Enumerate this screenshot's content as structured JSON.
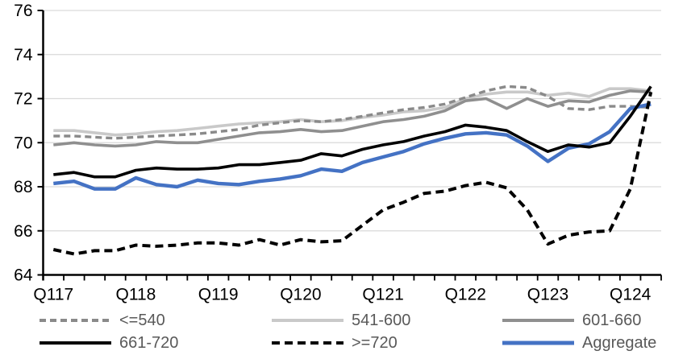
{
  "chart_data": {
    "type": "line",
    "title": "",
    "x_axis": {
      "tick_labels": [
        "Q117",
        "Q118",
        "Q119",
        "Q120",
        "Q121",
        "Q122",
        "Q123",
        "Q124"
      ],
      "label_point_indices": [
        0,
        4,
        8,
        12,
        16,
        20,
        24,
        28
      ],
      "n_points": 30,
      "minor_ticks_every_quarter": true
    },
    "y_axis": {
      "min": 64,
      "max": 76,
      "ticks": [
        64,
        66,
        68,
        70,
        72,
        74,
        76
      ]
    },
    "grid": true,
    "series": [
      {
        "name": "<=540",
        "color": "#8A8A8A",
        "style": "dashed",
        "values": [
          70.3,
          70.3,
          70.25,
          70.2,
          70.25,
          70.3,
          70.35,
          70.4,
          70.5,
          70.6,
          70.8,
          70.9,
          71.0,
          70.95,
          71.05,
          71.2,
          71.35,
          71.5,
          71.6,
          71.75,
          72.05,
          72.35,
          72.55,
          72.5,
          72.1,
          71.55,
          71.5,
          71.65,
          71.65,
          71.6
        ]
      },
      {
        "name": "541-600",
        "color": "#C9C9C9",
        "style": "solid",
        "values": [
          70.55,
          70.55,
          70.45,
          70.35,
          70.4,
          70.5,
          70.55,
          70.65,
          70.75,
          70.85,
          70.9,
          70.95,
          71.05,
          70.95,
          71.0,
          71.15,
          71.25,
          71.4,
          71.45,
          71.6,
          72.0,
          72.2,
          72.3,
          72.3,
          72.15,
          72.25,
          72.1,
          72.45,
          72.45,
          72.35
        ]
      },
      {
        "name": "601-660",
        "color": "#8F8F8F",
        "style": "solid",
        "values": [
          69.9,
          70.0,
          69.9,
          69.85,
          69.9,
          70.05,
          70.0,
          70.0,
          70.15,
          70.3,
          70.45,
          70.5,
          70.6,
          70.5,
          70.55,
          70.75,
          70.95,
          71.05,
          71.2,
          71.45,
          71.9,
          72.0,
          71.55,
          72.0,
          71.65,
          71.9,
          71.85,
          72.15,
          72.35,
          72.3
        ]
      },
      {
        "name": "661-720",
        "color": "#000000",
        "style": "solid",
        "values": [
          68.55,
          68.65,
          68.45,
          68.45,
          68.75,
          68.85,
          68.8,
          68.8,
          68.85,
          69.0,
          69.0,
          69.1,
          69.2,
          69.5,
          69.4,
          69.7,
          69.9,
          70.05,
          70.3,
          70.5,
          70.8,
          70.7,
          70.55,
          70.05,
          69.6,
          69.9,
          69.8,
          70.0,
          71.2,
          72.55
        ]
      },
      {
        "name": ">=720",
        "color": "#000000",
        "style": "dashed",
        "values": [
          65.15,
          64.95,
          65.1,
          65.1,
          65.35,
          65.3,
          65.35,
          65.45,
          65.45,
          65.35,
          65.6,
          65.35,
          65.6,
          65.5,
          65.55,
          66.25,
          66.95,
          67.3,
          67.7,
          67.8,
          68.05,
          68.2,
          67.95,
          66.95,
          65.4,
          65.8,
          65.95,
          66.0,
          67.9,
          72.3
        ]
      },
      {
        "name": "Aggregate",
        "color": "#4472C4",
        "style": "solid",
        "values": [
          68.15,
          68.25,
          67.9,
          67.9,
          68.4,
          68.1,
          68.0,
          68.3,
          68.15,
          68.1,
          68.25,
          68.35,
          68.5,
          68.8,
          68.7,
          69.1,
          69.35,
          69.6,
          69.95,
          70.2,
          70.4,
          70.45,
          70.35,
          69.85,
          69.15,
          69.75,
          69.95,
          70.5,
          71.55,
          71.75
        ]
      }
    ],
    "legend": {
      "position": "bottom",
      "rows": [
        [
          "<=540",
          "541-600",
          "601-660"
        ],
        [
          "661-720",
          ">=720",
          "Aggregate"
        ]
      ]
    }
  },
  "colors": {
    "gridline": "#D9D9D9",
    "axis": "#000000",
    "axis_label_text": "#000000",
    "legend_text": "#595959",
    "background": "#FFFFFF"
  }
}
